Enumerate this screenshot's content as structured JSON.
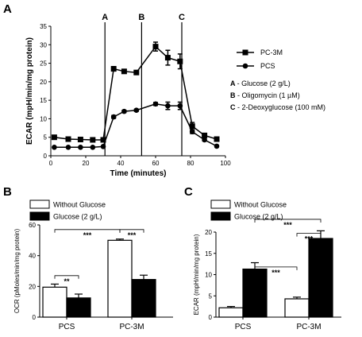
{
  "chart_data": [
    {
      "panel": "A",
      "type": "line",
      "xlabel": "Time (minutes)",
      "ylabel": "ECAR (mpH/min/mg protein)",
      "xlim": [
        0,
        100
      ],
      "ylim": [
        0,
        35
      ],
      "xticks": [
        0,
        20,
        40,
        60,
        80,
        100
      ],
      "yticks": [
        0,
        5,
        10,
        15,
        20,
        25,
        30,
        35
      ],
      "x": [
        2,
        10,
        17,
        24,
        30,
        36,
        42,
        49,
        60,
        67,
        74,
        81,
        88,
        95
      ],
      "series": [
        {
          "name": "PC-3M",
          "marker": "square",
          "values": [
            5.0,
            4.5,
            4.4,
            4.3,
            4.3,
            23.5,
            22.8,
            22.5,
            29.5,
            26.5,
            25.5,
            8.0,
            5.5,
            4.5
          ],
          "errors": [
            0.3,
            0.2,
            0.2,
            0.2,
            0.2,
            0.6,
            0.4,
            0.4,
            1.2,
            2.0,
            2.0,
            1.0,
            0.5,
            0.4
          ]
        },
        {
          "name": "PCS",
          "marker": "circle",
          "values": [
            2.3,
            2.3,
            2.3,
            2.3,
            2.5,
            10.5,
            12.0,
            12.3,
            14.0,
            13.5,
            13.5,
            6.5,
            4.3,
            2.6
          ],
          "errors": [
            0.1,
            0.1,
            0.1,
            0.1,
            0.1,
            0.4,
            0.3,
            0.3,
            0.4,
            1.0,
            1.0,
            0.5,
            0.3,
            0.2
          ]
        }
      ],
      "injections": [
        {
          "label": "A",
          "x": 31
        },
        {
          "label": "B",
          "x": 52
        },
        {
          "label": "C",
          "x": 75
        }
      ],
      "injection_notes": [
        {
          "key": "A",
          "text": "- Glucose (2 g/L)"
        },
        {
          "key": "B",
          "text": "- Oligomycin (1 µM)"
        },
        {
          "key": "C",
          "text": "- 2-Deoxyglucose (100 mM)"
        }
      ]
    },
    {
      "panel": "B",
      "type": "bar",
      "ylabel": "OCR (pMoles/min/mg protein)",
      "ylim": [
        0,
        60
      ],
      "yticks": [
        0,
        20,
        40,
        60
      ],
      "categories": [
        "PCS",
        "PC-3M"
      ],
      "series": [
        {
          "name": "Without Glucose",
          "fill": "white",
          "values": [
            19.5,
            50.0
          ],
          "errors": [
            2.0,
            0.8
          ]
        },
        {
          "name": "Glucose (2 g/L)",
          "fill": "black",
          "values": [
            12.5,
            24.5
          ],
          "errors": [
            2.5,
            2.8
          ]
        }
      ],
      "significance": [
        {
          "label": "**",
          "from": [
            0,
            0
          ],
          "to": [
            0,
            1
          ],
          "y": 27
        },
        {
          "label": "***",
          "from": [
            0,
            0
          ],
          "to": [
            1,
            0
          ],
          "y": 57
        },
        {
          "label": "***",
          "from": [
            1,
            0
          ],
          "to": [
            1,
            1
          ],
          "y": 57
        }
      ]
    },
    {
      "panel": "C",
      "type": "bar",
      "ylabel": "ECAR (mpH/min/mg protein)",
      "ylim": [
        0,
        20
      ],
      "yticks": [
        0,
        5,
        10,
        15,
        20
      ],
      "categories": [
        "PCS",
        "PC-3M"
      ],
      "series": [
        {
          "name": "Without Glucose",
          "fill": "white",
          "values": [
            2.2,
            4.3
          ],
          "errors": [
            0.3,
            0.4
          ]
        },
        {
          "name": "Glucose (2 g/L)",
          "fill": "black",
          "values": [
            11.3,
            18.5
          ],
          "errors": [
            1.5,
            1.8
          ]
        }
      ],
      "significance": [
        {
          "label": "***",
          "from": [
            0,
            1
          ],
          "to": [
            1,
            0
          ],
          "y": 11.8
        },
        {
          "label": "***",
          "from": [
            1,
            0
          ],
          "to": [
            1,
            1
          ],
          "y": 19.7
        },
        {
          "label": "***",
          "from": [
            0,
            1
          ],
          "to": [
            1,
            1
          ],
          "y": 23.0
        }
      ]
    }
  ]
}
